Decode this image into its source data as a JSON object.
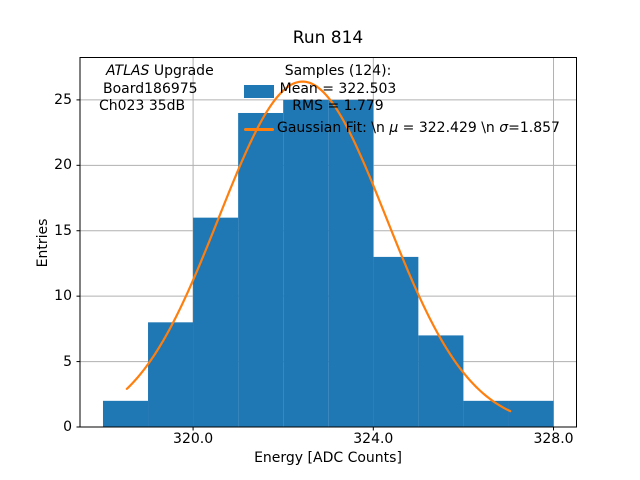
{
  "chart_data": {
    "type": "bar",
    "subtype": "histogram-with-gaussian-fit",
    "title": "Run 814",
    "xlabel": "Energy [ADC Counts]",
    "ylabel": "Entries",
    "bin_edges": [
      318,
      319,
      320,
      321,
      322,
      323,
      324,
      325,
      326,
      327,
      328
    ],
    "counts": [
      2,
      8,
      16,
      24,
      25,
      25,
      13,
      7,
      2,
      2
    ],
    "total_samples": 124,
    "xlim": [
      317.49,
      328.51
    ],
    "ylim": [
      0,
      28.24
    ],
    "xticks": [
      {
        "v": 320,
        "label": "320.0"
      },
      {
        "v": 324,
        "label": "324.0"
      },
      {
        "v": 328,
        "label": "328.0"
      }
    ],
    "yticks": [
      {
        "v": 0,
        "label": "0"
      },
      {
        "v": 5,
        "label": "5"
      },
      {
        "v": 10,
        "label": "10"
      },
      {
        "v": 15,
        "label": "15"
      },
      {
        "v": 20,
        "label": "20"
      },
      {
        "v": 25,
        "label": "25"
      }
    ],
    "grid": true,
    "legend_position": "upper right",
    "fit": {
      "type": "gaussian",
      "amplitude": 26.4,
      "mu": 322.429,
      "sigma": 1.857,
      "x_start": 318.53,
      "x_end": 327.04
    },
    "colors": {
      "bars": "#1f77b4",
      "fit_line": "#ff7f0e",
      "grid": "#b0b0b0",
      "spine": "#000000"
    },
    "legend": {
      "samples_line1": "Samples (124):",
      "samples_line2": "Mean = 322.503",
      "samples_line3": "RMS = 1.779",
      "fit_prefix": "Gaussian Fit: \\n ",
      "fit_mu_symbol": "μ",
      "fit_mid": " = 322.429 \\n ",
      "fit_sigma_symbol": "σ",
      "fit_suffix": "=1.857"
    },
    "annotation": {
      "line1_italic": "ATLAS",
      "line1_rest": " Upgrade",
      "line2": "Board186975",
      "line3": "Ch023 35dB"
    }
  }
}
